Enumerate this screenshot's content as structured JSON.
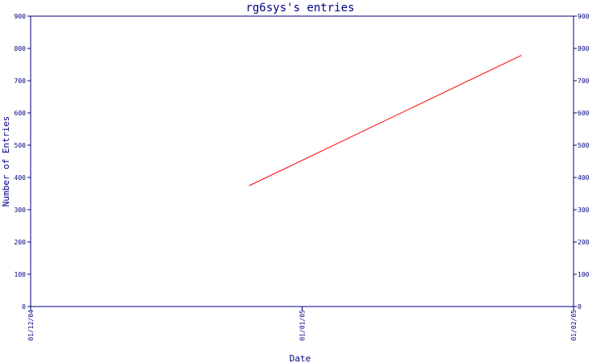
{
  "chart_data": {
    "type": "line",
    "title": "rg6sys's entries",
    "xlabel": "Date",
    "ylabel": "Number of Entries",
    "x_ticks": [
      "01/12/04",
      "01/01/05",
      "01/02/05"
    ],
    "y_ticks": [
      "0",
      "100",
      "200",
      "300",
      "400",
      "500",
      "600",
      "700",
      "800",
      "900"
    ],
    "ylim": [
      0,
      900
    ],
    "series": [
      {
        "x": [
          "2004-12-26",
          "2005-01-26"
        ],
        "y": [
          375,
          778
        ]
      }
    ],
    "grid": false,
    "line_color": "#ff0000",
    "axis_color": "#000080"
  }
}
